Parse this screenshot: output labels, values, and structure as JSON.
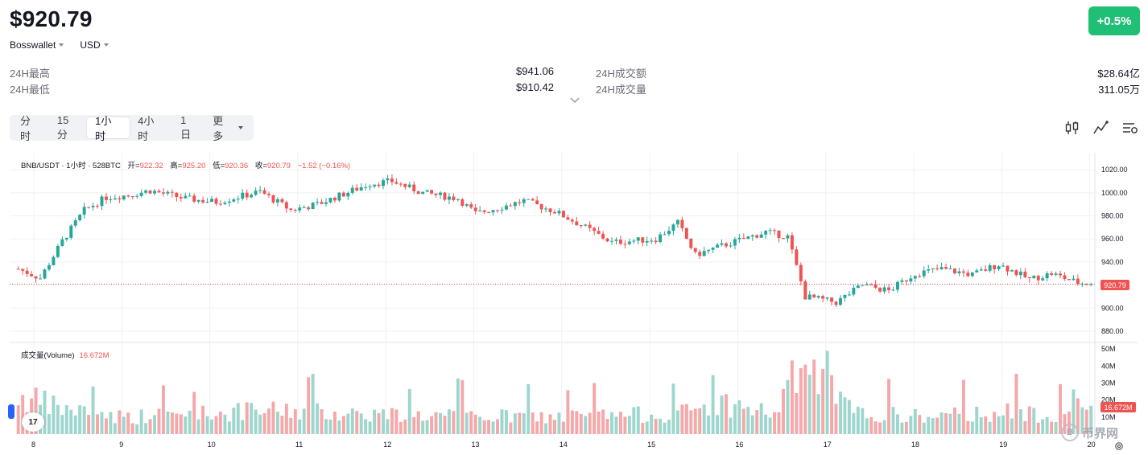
{
  "header": {
    "price": "$920.79",
    "change": "+0.5%",
    "wallet": "Bosswallet",
    "currency": "USD"
  },
  "stats": {
    "high_label": "24H最高",
    "high_value": "$941.06",
    "low_label": "24H最低",
    "low_value": "$910.42",
    "turnover_label": "24H成交额",
    "turnover_value": "$28.64亿",
    "volume_label": "24H成交量",
    "volume_value": "311.05万"
  },
  "timeframes": [
    "分时",
    "15分",
    "1小时",
    "4小时",
    "1日",
    "更多"
  ],
  "active_timeframe": "1小时",
  "tools": [
    "candlestick-icon",
    "indicator-icon",
    "settings-list-icon"
  ],
  "legend": {
    "title": "BNB/USDT · 1小时 · 528BTC",
    "open_k": "开=",
    "open_v": "922.32",
    "high_k": "高=",
    "high_v": "925.20",
    "low_k": "低=",
    "low_v": "920.36",
    "close_k": "收=",
    "close_v": "920.79",
    "change": "−1.52 (−0.16%)"
  },
  "volume_legend": {
    "title": "成交量(Volume)",
    "value": "16.672M"
  },
  "price_tag": "920.79",
  "volume_tag": "16.672M",
  "tv_logo": "17",
  "watermark": {
    "coin": "B",
    "text": "币界网"
  },
  "colors": {
    "up": "#26a69a",
    "down": "#ef5350",
    "badge": "#1fbf75",
    "grid": "#f0f1f4"
  },
  "chart_data": {
    "type": "candlestick",
    "title": "BNB/USDT · 1小时 · 528BTC",
    "y_ticks": [
      "1020.00",
      "1000.00",
      "980.00",
      "960.00",
      "940.00",
      "920.00",
      "900.00",
      "880.00"
    ],
    "y_range": [
      873,
      1025
    ],
    "volume_ticks": [
      "50M",
      "40M",
      "30M",
      "20M",
      "10M"
    ],
    "volume_range": [
      0,
      52
    ],
    "x_ticks": [
      "8",
      "9",
      "10",
      "11",
      "12",
      "13",
      "14",
      "15",
      "16",
      "17",
      "18",
      "19",
      "20"
    ],
    "last_close": 920.79,
    "candle_count": 245,
    "price_anchors": [
      [
        0,
        934
      ],
      [
        5,
        926
      ],
      [
        10,
        958
      ],
      [
        15,
        985
      ],
      [
        20,
        996
      ],
      [
        25,
        998
      ],
      [
        30,
        1002
      ],
      [
        38,
        995
      ],
      [
        45,
        992
      ],
      [
        55,
        1001
      ],
      [
        62,
        985
      ],
      [
        68,
        990
      ],
      [
        80,
        1008
      ],
      [
        85,
        1010
      ],
      [
        92,
        1000
      ],
      [
        100,
        995
      ],
      [
        104,
        982
      ],
      [
        115,
        993
      ],
      [
        122,
        984
      ],
      [
        128,
        972
      ],
      [
        135,
        957
      ],
      [
        145,
        960
      ],
      [
        150,
        974
      ],
      [
        154,
        946
      ],
      [
        160,
        954
      ],
      [
        170,
        966
      ],
      [
        175,
        962
      ],
      [
        179,
        910
      ],
      [
        186,
        905
      ],
      [
        192,
        920
      ],
      [
        198,
        915
      ],
      [
        204,
        930
      ],
      [
        210,
        934
      ],
      [
        217,
        929
      ],
      [
        223,
        938
      ],
      [
        230,
        925
      ],
      [
        235,
        930
      ],
      [
        241,
        922
      ],
      [
        244,
        921
      ]
    ],
    "volume_anchors": [
      [
        0,
        22
      ],
      [
        10,
        15
      ],
      [
        25,
        10
      ],
      [
        40,
        12
      ],
      [
        60,
        14
      ],
      [
        90,
        11
      ],
      [
        120,
        10
      ],
      [
        150,
        12
      ],
      [
        160,
        18
      ],
      [
        172,
        12
      ],
      [
        178,
        40
      ],
      [
        184,
        28
      ],
      [
        190,
        12
      ],
      [
        210,
        10
      ],
      [
        220,
        13
      ],
      [
        235,
        12
      ],
      [
        244,
        16.672
      ]
    ]
  }
}
